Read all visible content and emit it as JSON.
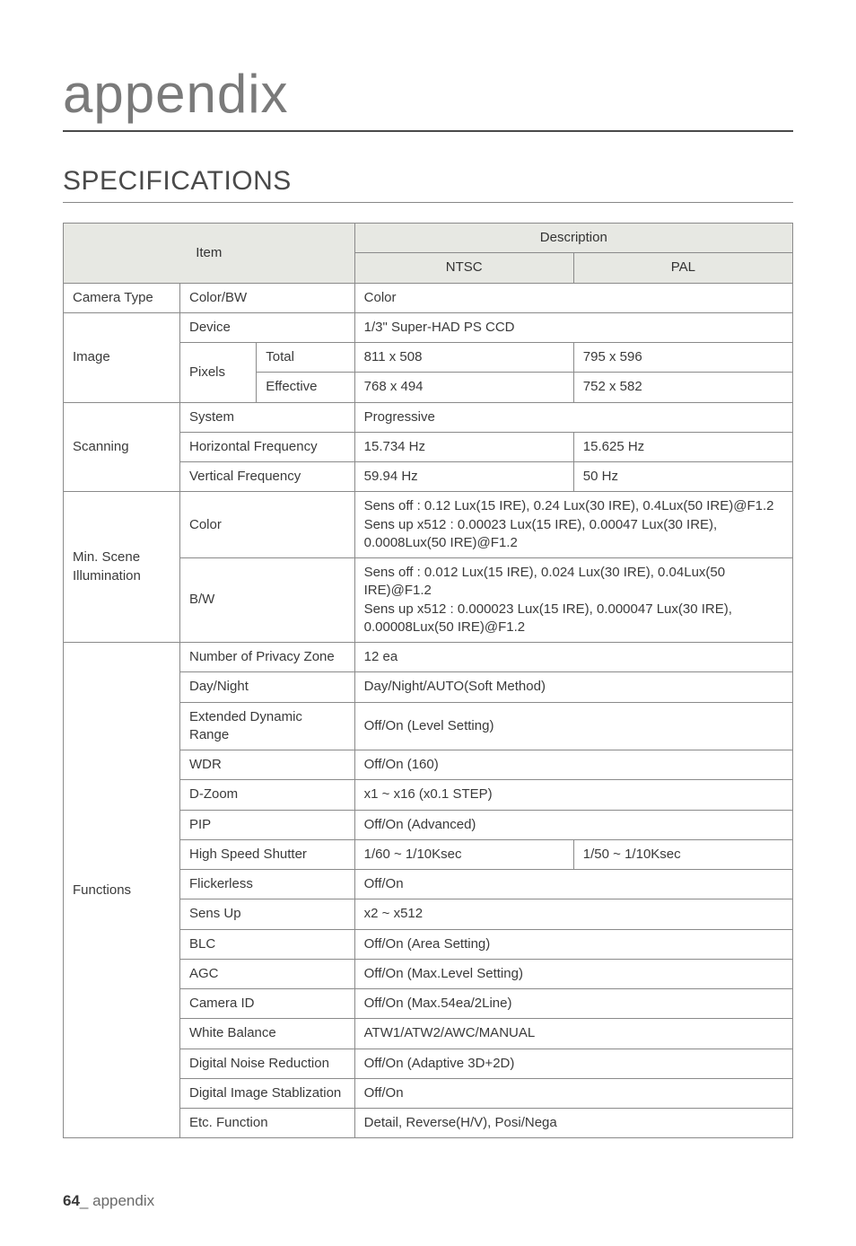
{
  "chapter_title": "appendix",
  "section_title": "SPECIFICATIONS",
  "table": {
    "header": {
      "item": "Item",
      "description": "Description",
      "ntsc": "NTSC",
      "pal": "PAL"
    },
    "rows": {
      "camera_type_label": "Camera Type",
      "color_bw": "Color/BW",
      "color_bw_val": "Color",
      "image_label": "Image",
      "device": "Device",
      "device_val": "1/3\" Super-HAD PS CCD",
      "pixels": "Pixels",
      "total": "Total",
      "total_ntsc": "811 x 508",
      "total_pal": "795 x 596",
      "effective": "Effective",
      "effective_ntsc": "768 x 494",
      "effective_pal": "752 x 582",
      "scanning_label": "Scanning",
      "system": "System",
      "system_val": "Progressive",
      "hfreq": "Horizontal Frequency",
      "hfreq_ntsc": "15.734 Hz",
      "hfreq_pal": "15.625 Hz",
      "vfreq": "Vertical Frequency",
      "vfreq_ntsc": "59.94 Hz",
      "vfreq_pal": "50 Hz",
      "minscene_label": "Min. Scene Illumination",
      "ms_color": "Color",
      "ms_color_val": "Sens off : 0.12 Lux(15 IRE), 0.24 Lux(30 IRE), 0.4Lux(50 IRE)@F1.2\nSens up x512 : 0.00023 Lux(15 IRE), 0.00047 Lux(30 IRE), 0.0008Lux(50 IRE)@F1.2",
      "ms_bw": "B/W",
      "ms_bw_val": "Sens off : 0.012 Lux(15 IRE), 0.024 Lux(30 IRE), 0.04Lux(50 IRE)@F1.2\nSens up x512 : 0.000023 Lux(15 IRE), 0.000047 Lux(30 IRE), 0.00008Lux(50 IRE)@F1.2",
      "functions_label": "Functions",
      "privacy": "Number of Privacy Zone",
      "privacy_val": "12 ea",
      "daynight": "Day/Night",
      "daynight_val": "Day/Night/AUTO(Soft Method)",
      "edr": "Extended Dynamic Range",
      "edr_val": "Off/On (Level Setting)",
      "wdr": "WDR",
      "wdr_val": "Off/On (160)",
      "dzoom": "D-Zoom",
      "dzoom_val": "x1 ~ x16  (x0.1 STEP)",
      "pip": "PIP",
      "pip_val": "Off/On (Advanced)",
      "hss": "High Speed Shutter",
      "hss_ntsc": "1/60 ~ 1/10Ksec",
      "hss_pal": "1/50 ~ 1/10Ksec",
      "flicker": "Flickerless",
      "flicker_val": "Off/On",
      "sensup": "Sens Up",
      "sensup_val": "x2 ~ x512",
      "blc": "BLC",
      "blc_val": "Off/On (Area Setting)",
      "agc": "AGC",
      "agc_val": "Off/On (Max.Level Setting)",
      "camid": "Camera ID",
      "camid_val": "Off/On (Max.54ea/2Line)",
      "wb": "White Balance",
      "wb_val": "ATW1/ATW2/AWC/MANUAL",
      "dnr": "Digital Noise Reduction",
      "dnr_val": "Off/On (Adaptive 3D+2D)",
      "dis": "Digital Image Stablization",
      "dis_val": "Off/On",
      "etc": "Etc. Function",
      "etc_val": "Detail, Reverse(H/V), Posi/Nega"
    }
  },
  "footer": {
    "page": "64",
    "sep": "_ ",
    "label": "appendix"
  }
}
